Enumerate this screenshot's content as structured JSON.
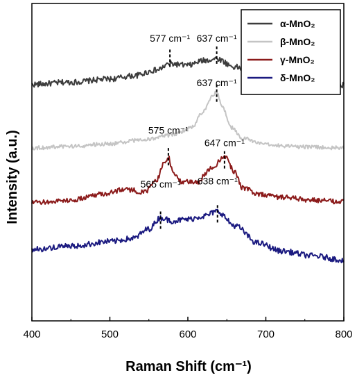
{
  "chart_data": {
    "type": "line",
    "xlabel": "Raman Shift (cm⁻¹)",
    "ylabel": "Intensity (a.u.)",
    "xlim": [
      400,
      800
    ],
    "xticks": [
      400,
      500,
      600,
      700,
      800
    ],
    "ylim": [
      0,
      100
    ],
    "yticks_shown": false,
    "grid": false,
    "legend_position": "top-right",
    "series": [
      {
        "name": "α-MnO₂",
        "color": "#3c3c3c",
        "offset": 74,
        "noise": 0.9,
        "x": [
          400,
          450,
          500,
          530,
          560,
          577,
          600,
          620,
          637,
          660,
          690,
          720,
          760,
          800
        ],
        "y": [
          74.5,
          75.2,
          76.2,
          77.2,
          79.0,
          81.0,
          80.5,
          82.0,
          82.6,
          80.0,
          77.0,
          76.0,
          74.8,
          74.3
        ]
      },
      {
        "name": "β-MnO₂",
        "color": "#c4c4c4",
        "offset": 54,
        "noise": 0.6,
        "x": [
          400,
          450,
          500,
          540,
          580,
          605,
          620,
          630,
          637,
          645,
          655,
          670,
          700,
          750,
          800
        ],
        "y": [
          54.5,
          55.0,
          55.8,
          57.0,
          58.5,
          61.0,
          66.0,
          70.5,
          72.0,
          67.0,
          61.0,
          57.5,
          55.5,
          54.8,
          54.5
        ]
      },
      {
        "name": "γ-MnO₂",
        "color": "#8b1a1a",
        "offset": 37,
        "noise": 0.8,
        "x": [
          400,
          450,
          490,
          520,
          545,
          560,
          570,
          575,
          580,
          590,
          610,
          630,
          647,
          660,
          670,
          690,
          720,
          760,
          800
        ],
        "y": [
          37.2,
          38.0,
          40.0,
          41.5,
          40.5,
          44.5,
          50.0,
          51.5,
          47.5,
          44.0,
          43.5,
          48.0,
          52.0,
          47.0,
          42.0,
          40.0,
          39.0,
          38.0,
          37.5
        ]
      },
      {
        "name": "δ-MnO₂",
        "color": "#1b1a80",
        "offset": 19,
        "noise": 0.9,
        "x": [
          400,
          450,
          500,
          530,
          550,
          565,
          580,
          600,
          620,
          638,
          660,
          690,
          720,
          760,
          800
        ],
        "y": [
          22.5,
          23.5,
          25.0,
          26.0,
          29.0,
          32.5,
          31.5,
          32.0,
          33.0,
          34.5,
          30.0,
          24.5,
          22.0,
          20.5,
          19.2
        ]
      }
    ],
    "peak_annotations": [
      {
        "series": 0,
        "x": 577,
        "text": "577 cm⁻¹",
        "label_y": 88,
        "dash_y": [
          80,
          86
        ]
      },
      {
        "series": 0,
        "x": 637,
        "text": "637 cm⁻¹",
        "label_y": 88,
        "dash_y": [
          81,
          87
        ]
      },
      {
        "series": 1,
        "x": 637,
        "text": "637 cm⁻¹",
        "label_y": 74,
        "dash_y": [
          69,
          75
        ]
      },
      {
        "series": 2,
        "x": 575,
        "text": "575 cm⁻¹",
        "label_y": 59,
        "dash_y": [
          49,
          55
        ]
      },
      {
        "series": 2,
        "x": 647,
        "text": "647 cm⁻¹",
        "label_y": 55,
        "dash_y": [
          48,
          54
        ]
      },
      {
        "series": 3,
        "x": 565,
        "text": "565 cm⁻¹",
        "label_y": 42,
        "dash_y": [
          29,
          35
        ]
      },
      {
        "series": 3,
        "x": 638,
        "text": "638 cm⁻¹",
        "label_y": 43,
        "dash_y": [
          31,
          37
        ]
      }
    ]
  }
}
